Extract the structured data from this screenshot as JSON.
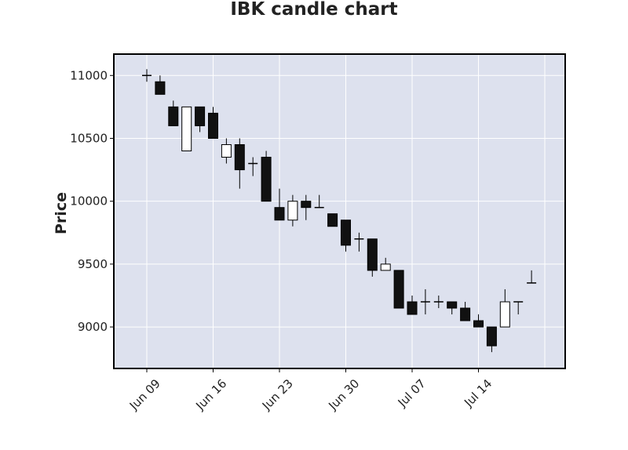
{
  "chart_data": {
    "type": "candlestick",
    "title": "IBK candle chart",
    "xlabel": "",
    "ylabel": "Price",
    "ylim": [
      8670,
      11170
    ],
    "yticks": [
      9000,
      9500,
      10000,
      10500,
      11000
    ],
    "grid": true,
    "x_ticks": [
      {
        "label": "Jun 09",
        "index": 0
      },
      {
        "label": "Jun 16",
        "index": 5
      },
      {
        "label": "Jun 23",
        "index": 10
      },
      {
        "label": "Jun 30",
        "index": 15
      },
      {
        "label": "Jul 07",
        "index": 20
      },
      {
        "label": "Jul 14",
        "index": 25
      }
    ],
    "ohlc": [
      {
        "date": "2020-06-09",
        "open": 11000,
        "high": 11050,
        "low": 10950,
        "close": 11000
      },
      {
        "date": "2020-06-10",
        "open": 10950,
        "high": 11000,
        "low": 10850,
        "close": 10850
      },
      {
        "date": "2020-06-11",
        "open": 10750,
        "high": 10800,
        "low": 10600,
        "close": 10600
      },
      {
        "date": "2020-06-12",
        "open": 10400,
        "high": 10750,
        "low": 10400,
        "close": 10750
      },
      {
        "date": "2020-06-15",
        "open": 10750,
        "high": 10750,
        "low": 10550,
        "close": 10600
      },
      {
        "date": "2020-06-16",
        "open": 10700,
        "high": 10750,
        "low": 10500,
        "close": 10500
      },
      {
        "date": "2020-06-17",
        "open": 10350,
        "high": 10500,
        "low": 10300,
        "close": 10450
      },
      {
        "date": "2020-06-18",
        "open": 10450,
        "high": 10500,
        "low": 10100,
        "close": 10250
      },
      {
        "date": "2020-06-19",
        "open": 10300,
        "high": 10350,
        "low": 10200,
        "close": 10300
      },
      {
        "date": "2020-06-22",
        "open": 10350,
        "high": 10400,
        "low": 10000,
        "close": 10000
      },
      {
        "date": "2020-06-23",
        "open": 9950,
        "high": 10100,
        "low": 9850,
        "close": 9850
      },
      {
        "date": "2020-06-24",
        "open": 9850,
        "high": 10050,
        "low": 9800,
        "close": 10000
      },
      {
        "date": "2020-06-25",
        "open": 10000,
        "high": 10050,
        "low": 9850,
        "close": 9950
      },
      {
        "date": "2020-06-26",
        "open": 9950,
        "high": 10050,
        "low": 9950,
        "close": 9950
      },
      {
        "date": "2020-06-29",
        "open": 9900,
        "high": 9900,
        "low": 9800,
        "close": 9800
      },
      {
        "date": "2020-06-30",
        "open": 9850,
        "high": 9850,
        "low": 9600,
        "close": 9650
      },
      {
        "date": "2020-07-01",
        "open": 9700,
        "high": 9750,
        "low": 9600,
        "close": 9700
      },
      {
        "date": "2020-07-02",
        "open": 9700,
        "high": 9700,
        "low": 9400,
        "close": 9450
      },
      {
        "date": "2020-07-03",
        "open": 9450,
        "high": 9550,
        "low": 9450,
        "close": 9500
      },
      {
        "date": "2020-07-06",
        "open": 9450,
        "high": 9450,
        "low": 9150,
        "close": 9150
      },
      {
        "date": "2020-07-07",
        "open": 9200,
        "high": 9250,
        "low": 9100,
        "close": 9100
      },
      {
        "date": "2020-07-08",
        "open": 9200,
        "high": 9300,
        "low": 9100,
        "close": 9200
      },
      {
        "date": "2020-07-09",
        "open": 9200,
        "high": 9250,
        "low": 9150,
        "close": 9200
      },
      {
        "date": "2020-07-10",
        "open": 9200,
        "high": 9200,
        "low": 9100,
        "close": 9150
      },
      {
        "date": "2020-07-13",
        "open": 9150,
        "high": 9200,
        "low": 9050,
        "close": 9050
      },
      {
        "date": "2020-07-14",
        "open": 9050,
        "high": 9100,
        "low": 9000,
        "close": 9000
      },
      {
        "date": "2020-07-15",
        "open": 9000,
        "high": 9000,
        "low": 8800,
        "close": 8850
      },
      {
        "date": "2020-07-16",
        "open": 9000,
        "high": 9300,
        "low": 9000,
        "close": 9200
      },
      {
        "date": "2020-07-17",
        "open": 9200,
        "high": 9200,
        "low": 9100,
        "close": 9200
      },
      {
        "date": "2020-07-20",
        "open": 9350,
        "high": 9450,
        "low": 9350,
        "close": 9350
      }
    ],
    "colors": {
      "up_fill": "#ffffff",
      "down_fill": "#111111",
      "edge": "#000000",
      "plot_bg": "#dde1ee",
      "grid": "#ffffff",
      "text": "#222222"
    }
  }
}
